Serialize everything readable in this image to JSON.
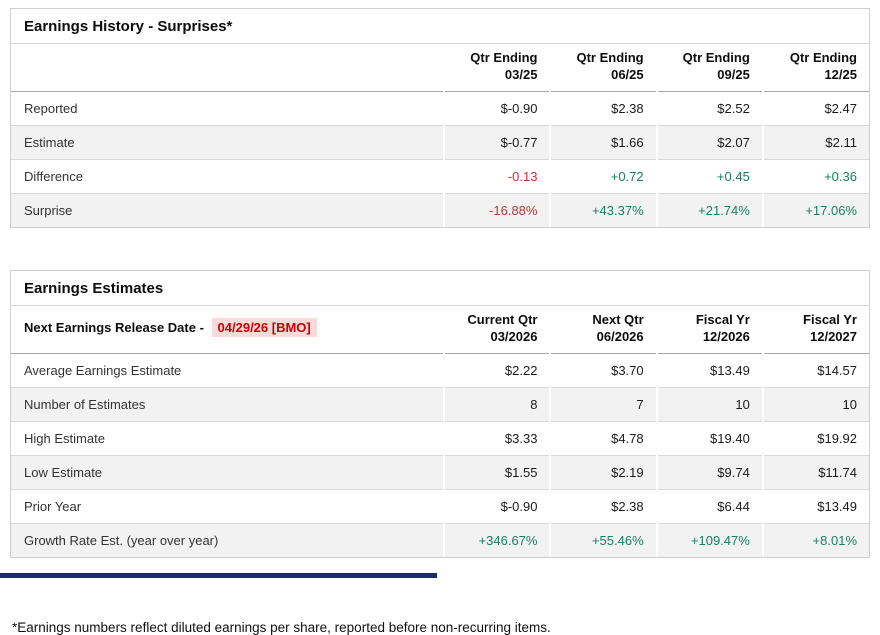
{
  "colors": {
    "positive": "#157f62",
    "negative": "#c03434",
    "release_date_text": "#cc0000",
    "release_date_bg": "#fbdada",
    "bottom_bar": "#1d2e5e"
  },
  "earnings_history": {
    "title": "Earnings History - Surprises*",
    "columns": [
      {
        "line1": "Qtr Ending",
        "line2": "03/25"
      },
      {
        "line1": "Qtr Ending",
        "line2": "06/25"
      },
      {
        "line1": "Qtr Ending",
        "line2": "09/25"
      },
      {
        "line1": "Qtr Ending",
        "line2": "12/25"
      }
    ],
    "rows": [
      {
        "label": "Reported",
        "values": [
          {
            "text": "$-0.90",
            "tone": "neutral"
          },
          {
            "text": "$2.38",
            "tone": "neutral"
          },
          {
            "text": "$2.52",
            "tone": "neutral"
          },
          {
            "text": "$2.47",
            "tone": "neutral"
          }
        ]
      },
      {
        "label": "Estimate",
        "values": [
          {
            "text": "$-0.77",
            "tone": "neutral"
          },
          {
            "text": "$1.66",
            "tone": "neutral"
          },
          {
            "text": "$2.07",
            "tone": "neutral"
          },
          {
            "text": "$2.11",
            "tone": "neutral"
          }
        ]
      },
      {
        "label": "Difference",
        "values": [
          {
            "text": "-0.13",
            "tone": "negative"
          },
          {
            "text": "+0.72",
            "tone": "positive"
          },
          {
            "text": "+0.45",
            "tone": "positive"
          },
          {
            "text": "+0.36",
            "tone": "positive"
          }
        ]
      },
      {
        "label": "Surprise",
        "values": [
          {
            "text": "-16.88%",
            "tone": "negative"
          },
          {
            "text": "+43.37%",
            "tone": "positive"
          },
          {
            "text": "+21.74%",
            "tone": "positive"
          },
          {
            "text": "+17.06%",
            "tone": "positive"
          }
        ]
      }
    ]
  },
  "earnings_estimates": {
    "title": "Earnings Estimates",
    "release_label": "Next Earnings Release Date -",
    "release_date": "04/29/26 [BMO]",
    "columns": [
      {
        "line1": "Current Qtr",
        "line2": "03/2026"
      },
      {
        "line1": "Next Qtr",
        "line2": "06/2026"
      },
      {
        "line1": "Fiscal Yr",
        "line2": "12/2026"
      },
      {
        "line1": "Fiscal Yr",
        "line2": "12/2027"
      }
    ],
    "rows": [
      {
        "label": "Average Earnings Estimate",
        "values": [
          {
            "text": "$2.22",
            "tone": "neutral"
          },
          {
            "text": "$3.70",
            "tone": "neutral"
          },
          {
            "text": "$13.49",
            "tone": "neutral"
          },
          {
            "text": "$14.57",
            "tone": "neutral"
          }
        ]
      },
      {
        "label": "Number of Estimates",
        "values": [
          {
            "text": "8",
            "tone": "neutral"
          },
          {
            "text": "7",
            "tone": "neutral"
          },
          {
            "text": "10",
            "tone": "neutral"
          },
          {
            "text": "10",
            "tone": "neutral"
          }
        ]
      },
      {
        "label": "High Estimate",
        "values": [
          {
            "text": "$3.33",
            "tone": "neutral"
          },
          {
            "text": "$4.78",
            "tone": "neutral"
          },
          {
            "text": "$19.40",
            "tone": "neutral"
          },
          {
            "text": "$19.92",
            "tone": "neutral"
          }
        ]
      },
      {
        "label": "Low Estimate",
        "values": [
          {
            "text": "$1.55",
            "tone": "neutral"
          },
          {
            "text": "$2.19",
            "tone": "neutral"
          },
          {
            "text": "$9.74",
            "tone": "neutral"
          },
          {
            "text": "$11.74",
            "tone": "neutral"
          }
        ]
      },
      {
        "label": "Prior Year",
        "values": [
          {
            "text": "$-0.90",
            "tone": "neutral"
          },
          {
            "text": "$2.38",
            "tone": "neutral"
          },
          {
            "text": "$6.44",
            "tone": "neutral"
          },
          {
            "text": "$13.49",
            "tone": "neutral"
          }
        ]
      },
      {
        "label": "Growth Rate Est. (year over year)",
        "values": [
          {
            "text": "+346.67%",
            "tone": "positive"
          },
          {
            "text": "+55.46%",
            "tone": "positive"
          },
          {
            "text": "+109.47%",
            "tone": "positive"
          },
          {
            "text": "+8.01%",
            "tone": "positive"
          }
        ]
      }
    ]
  },
  "footnote": "*Earnings numbers reflect diluted earnings per share, reported before non-recurring items."
}
